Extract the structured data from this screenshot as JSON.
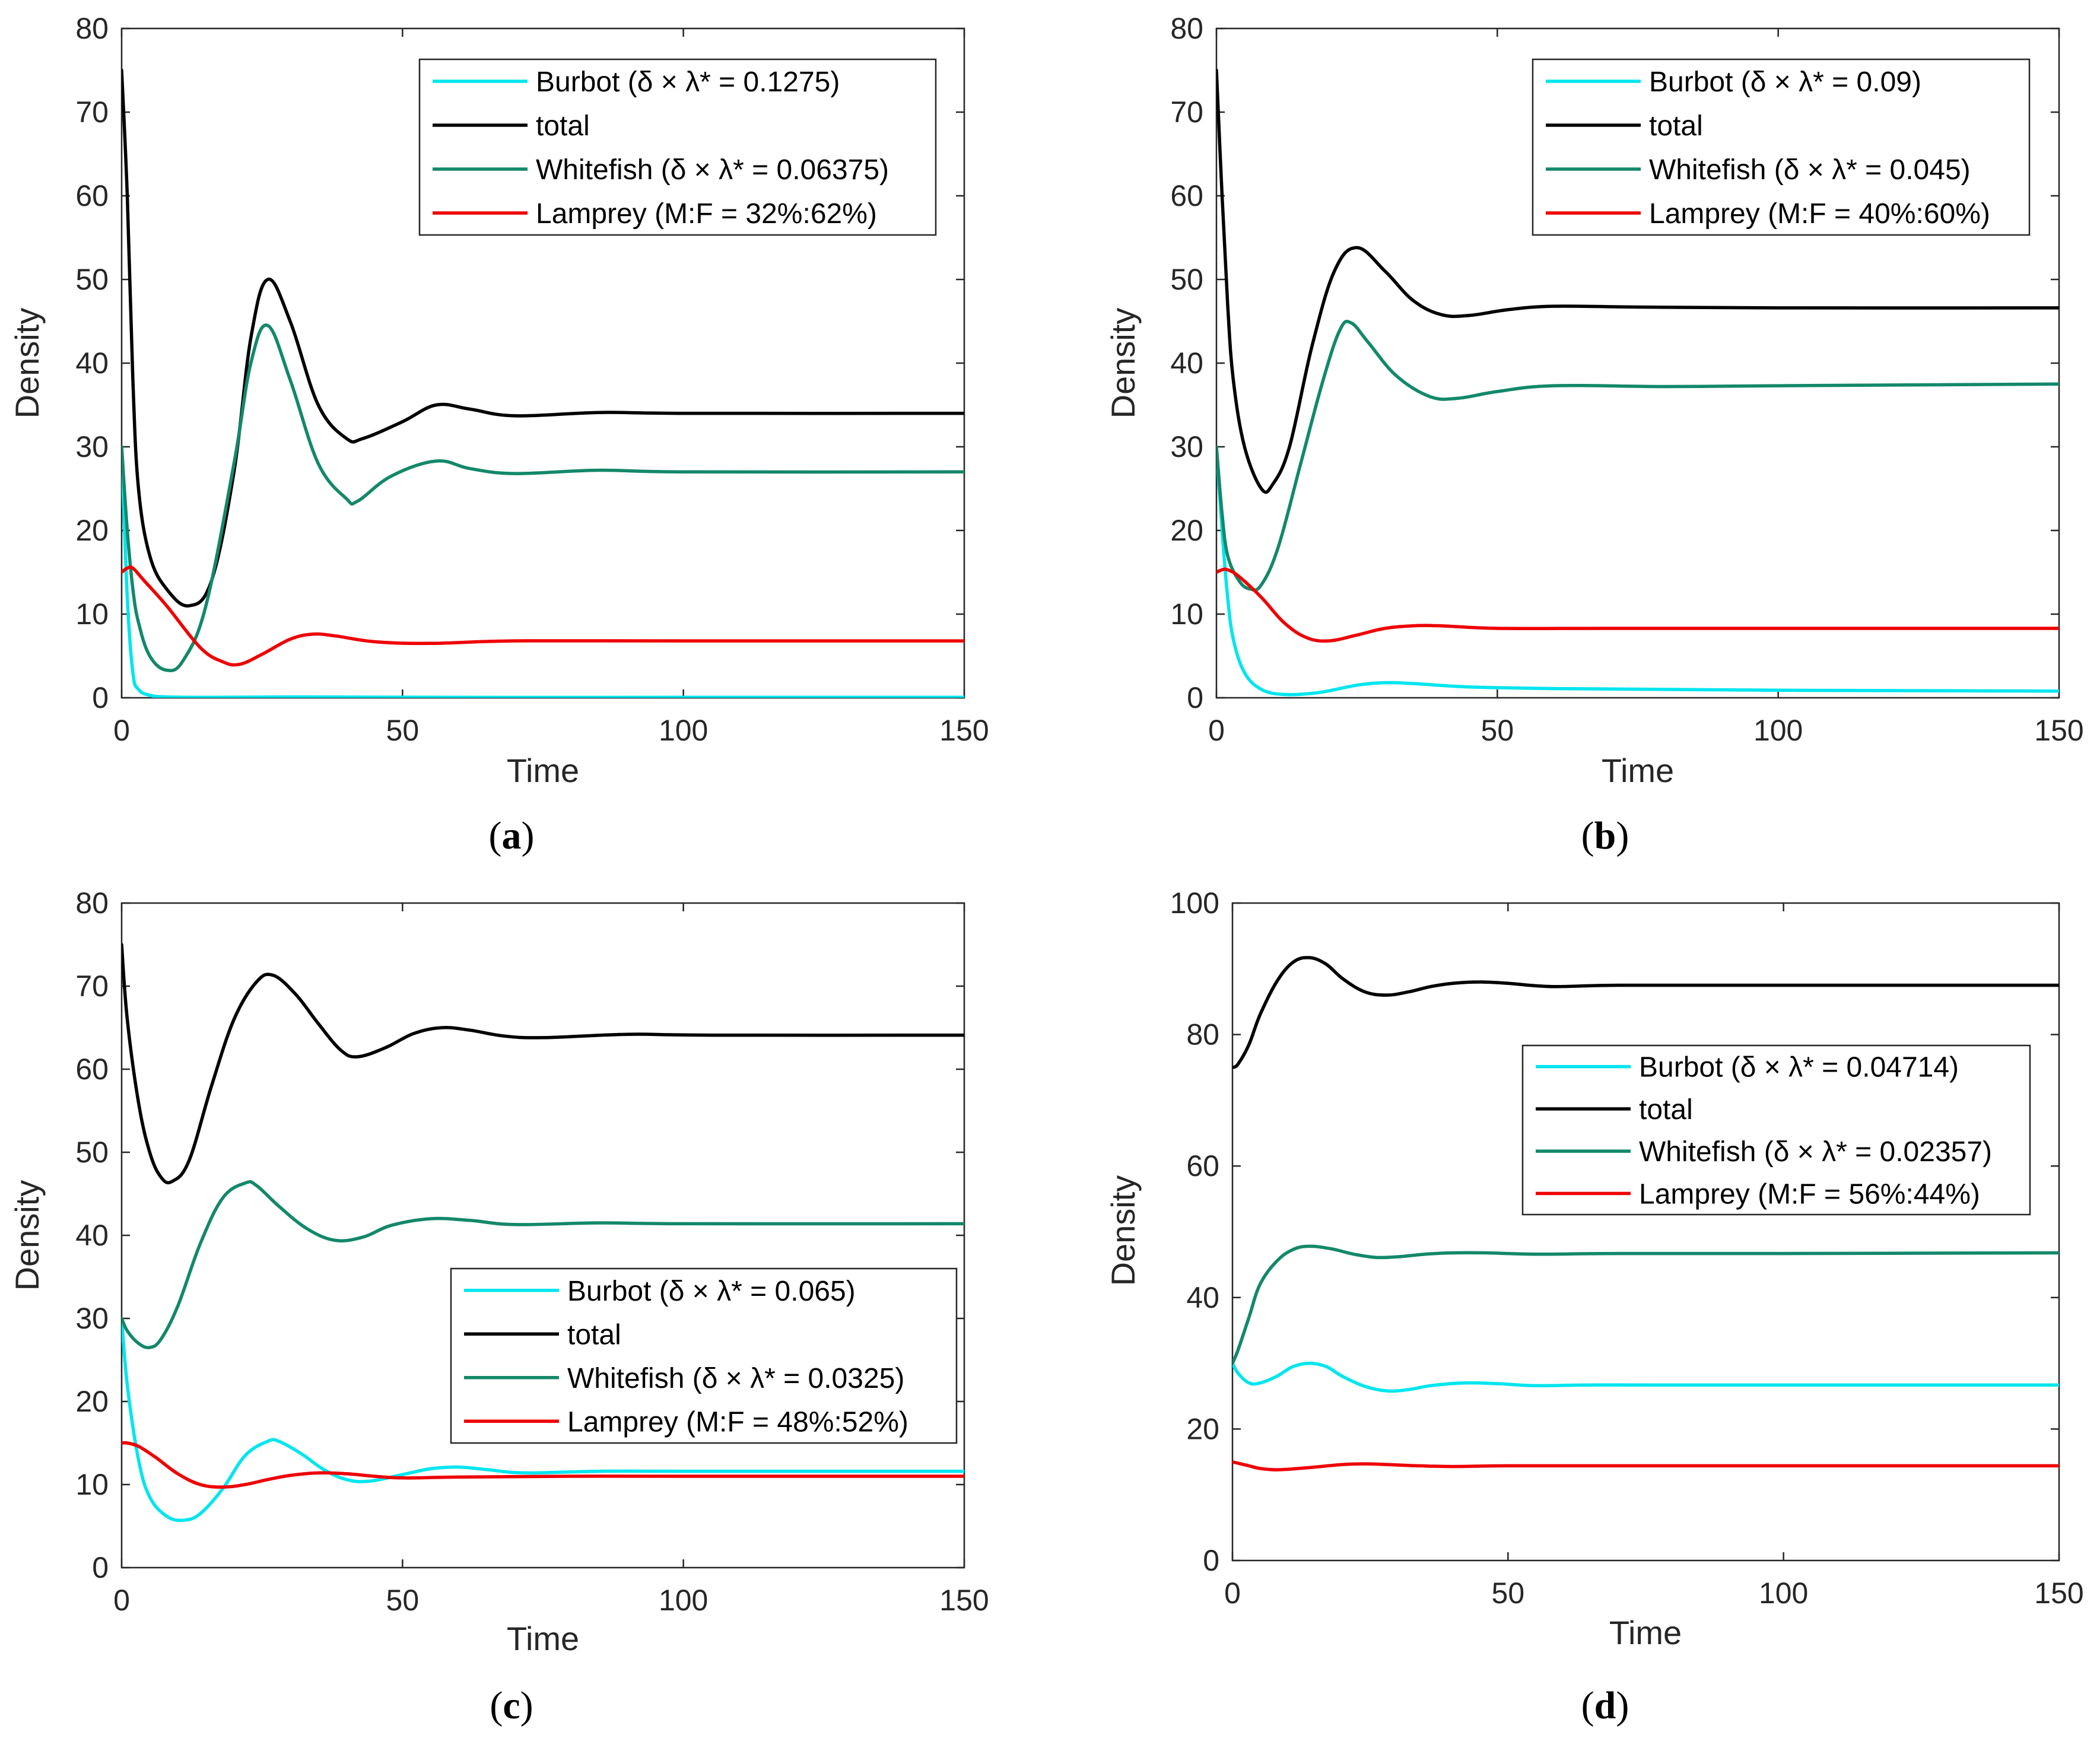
{
  "chart_data": [
    {
      "panel": "(a)",
      "panel_label": "a",
      "type": "line",
      "xlabel": "Time",
      "ylabel": "Density",
      "xlim": [
        0,
        150
      ],
      "ylim": [
        0,
        80
      ],
      "xticks": [
        0,
        50,
        100,
        150
      ],
      "yticks": [
        0,
        10,
        20,
        30,
        40,
        50,
        60,
        70,
        80
      ],
      "grid": false,
      "legend_position": "top-right",
      "series": [
        {
          "name": "Burbot (δ × λ* = 0.1275)",
          "color": "#00e5ee",
          "x": [
            0,
            1,
            2,
            3,
            5,
            8,
            15,
            30,
            60,
            100,
            150
          ],
          "y": [
            30,
            12,
            3,
            1,
            0.3,
            0.1,
            0.05,
            0.1,
            0.05,
            0.05,
            0.05
          ]
        },
        {
          "name": "total",
          "color": "#000000",
          "x": [
            0,
            1,
            2,
            3,
            5,
            8,
            12,
            16,
            20,
            23,
            26,
            30,
            35,
            40,
            43,
            50,
            56,
            62,
            70,
            85,
            100,
            150
          ],
          "y": [
            75,
            60,
            38,
            25,
            17,
            13,
            11,
            14,
            27,
            43,
            50,
            45,
            35,
            31,
            31,
            33,
            35,
            34.5,
            33.7,
            34.1,
            34,
            34
          ]
        },
        {
          "name": "Whitefish (δ × λ* = 0.06375)",
          "color": "#13886a",
          "x": [
            0,
            1,
            2,
            3,
            5,
            8,
            11,
            15,
            20,
            23,
            26,
            30,
            35,
            40,
            42,
            48,
            56,
            62,
            70,
            85,
            100,
            150
          ],
          "y": [
            30,
            20,
            13,
            9,
            5,
            3.3,
            4.5,
            11,
            28,
            40,
            44.5,
            38,
            28,
            23.8,
            23.5,
            26.5,
            28.3,
            27.4,
            26.8,
            27.2,
            27,
            27
          ]
        },
        {
          "name": "Lamprey (M:F = 32%:62%)",
          "color": "#ee0000",
          "x": [
            0,
            1,
            2,
            4,
            8,
            14,
            18,
            21,
            25,
            30,
            34,
            38,
            45,
            55,
            70,
            100,
            150
          ],
          "y": [
            15,
            15.5,
            15.5,
            14,
            11,
            6,
            4.3,
            4,
            5.2,
            7,
            7.6,
            7.4,
            6.7,
            6.5,
            6.8,
            6.8,
            6.8
          ]
        }
      ]
    },
    {
      "panel": "(b)",
      "panel_label": "b",
      "type": "line",
      "xlabel": "Time",
      "ylabel": "Density",
      "xlim": [
        0,
        150
      ],
      "ylim": [
        0,
        80
      ],
      "xticks": [
        0,
        50,
        100,
        150
      ],
      "yticks": [
        0,
        10,
        20,
        30,
        40,
        50,
        60,
        70,
        80
      ],
      "grid": false,
      "legend_position": "top-right",
      "series": [
        {
          "name": "Burbot (δ × λ* = 0.09)",
          "color": "#00e5ee",
          "x": [
            0,
            1,
            2,
            3,
            5,
            8,
            12,
            18,
            25,
            30,
            35,
            45,
            60,
            80,
            100,
            150
          ],
          "y": [
            30,
            20,
            12,
            7,
            3,
            1,
            0.4,
            0.6,
            1.5,
            1.8,
            1.7,
            1.3,
            1.1,
            1,
            0.9,
            0.8
          ]
        },
        {
          "name": "total",
          "color": "#000000",
          "x": [
            0,
            1,
            2,
            3,
            5,
            8,
            10,
            13,
            17,
            21,
            25,
            30,
            35,
            40,
            45,
            52,
            60,
            75,
            100,
            150
          ],
          "y": [
            75,
            60,
            47,
            38,
            30,
            25,
            25.5,
            30,
            42,
            51,
            53.8,
            51,
            47.5,
            45.8,
            45.7,
            46.4,
            46.8,
            46.7,
            46.6,
            46.6
          ]
        },
        {
          "name": "Whitefish (δ × λ* = 0.045)",
          "color": "#13886a",
          "x": [
            0,
            1,
            2,
            4,
            6,
            8,
            11,
            15,
            19,
            22,
            24,
            27,
            32,
            38,
            43,
            50,
            60,
            80,
            100,
            150
          ],
          "y": [
            30,
            22,
            17,
            14,
            13,
            13.5,
            18,
            28,
            38,
            44,
            44.8,
            42.5,
            38.5,
            36,
            35.8,
            36.6,
            37.3,
            37.2,
            37.3,
            37.5
          ]
        },
        {
          "name": "Lamprey (M:F = 40%:60%)",
          "color": "#ee0000",
          "x": [
            0,
            1,
            2,
            4,
            8,
            12,
            16,
            20,
            25,
            30,
            35,
            40,
            50,
            70,
            100,
            150
          ],
          "y": [
            15,
            15.3,
            15.3,
            14.5,
            12,
            9,
            7.2,
            6.8,
            7.5,
            8.3,
            8.6,
            8.6,
            8.3,
            8.3,
            8.3,
            8.3
          ]
        }
      ]
    },
    {
      "panel": "(c)",
      "panel_label": "c",
      "type": "line",
      "xlabel": "Time",
      "ylabel": "Density",
      "xlim": [
        0,
        150
      ],
      "ylim": [
        0,
        80
      ],
      "xticks": [
        0,
        50,
        100,
        150
      ],
      "yticks": [
        0,
        10,
        20,
        30,
        40,
        50,
        60,
        70,
        80
      ],
      "grid": false,
      "legend_position": "lower-right",
      "series": [
        {
          "name": "Burbot (δ × λ* = 0.065)",
          "color": "#00e5ee",
          "x": [
            0,
            1,
            3,
            5,
            8,
            11,
            14,
            18,
            22,
            26,
            28,
            32,
            36,
            40,
            44,
            50,
            55,
            60,
            65,
            72,
            85,
            100,
            150
          ],
          "y": [
            30,
            22,
            13,
            8.5,
            6.2,
            5.7,
            6.5,
            9.5,
            13.5,
            15.2,
            15.2,
            13.7,
            11.8,
            10.6,
            10.4,
            11.2,
            11.9,
            12.1,
            11.8,
            11.4,
            11.6,
            11.6,
            11.6
          ]
        },
        {
          "name": "total",
          "color": "#000000",
          "x": [
            0,
            1,
            3,
            5,
            7,
            9,
            12,
            16,
            20,
            24,
            27,
            31,
            35,
            39,
            42,
            47,
            52,
            57,
            62,
            68,
            75,
            90,
            105,
            150
          ],
          "y": [
            75,
            66,
            56,
            50,
            47,
            46.5,
            49,
            58,
            66,
            70.5,
            71.3,
            69,
            65.5,
            62.3,
            61.5,
            62.6,
            64.3,
            65,
            64.7,
            64,
            63.8,
            64.2,
            64.1,
            64.1
          ]
        },
        {
          "name": "Whitefish (δ × λ* = 0.0325)",
          "color": "#13886a",
          "x": [
            0,
            1,
            3,
            5,
            7,
            10,
            14,
            18,
            22,
            24,
            28,
            33,
            38,
            43,
            48,
            55,
            62,
            70,
            85,
            100,
            150
          ],
          "y": [
            30,
            28.5,
            27,
            26.5,
            27.5,
            31.5,
            39,
            44.5,
            46.3,
            46,
            43.5,
            40.8,
            39.4,
            39.8,
            41.2,
            42,
            41.8,
            41.3,
            41.5,
            41.4,
            41.4
          ]
        },
        {
          "name": "Lamprey (M:F = 48%:52%)",
          "color": "#ee0000",
          "x": [
            0,
            1,
            3,
            6,
            10,
            14,
            18,
            22,
            26,
            30,
            35,
            40,
            45,
            50,
            60,
            80,
            100,
            150
          ],
          "y": [
            15,
            15,
            14.6,
            13.3,
            11.3,
            10,
            9.7,
            10,
            10.6,
            11.1,
            11.4,
            11.3,
            11,
            10.8,
            10.9,
            11,
            11,
            11
          ]
        }
      ]
    },
    {
      "panel": "(d)",
      "panel_label": "d",
      "type": "line",
      "xlabel": "Time",
      "ylabel": "Density",
      "xlim": [
        0,
        150
      ],
      "ylim": [
        0,
        100
      ],
      "xticks": [
        0,
        50,
        100,
        150
      ],
      "yticks": [
        0,
        20,
        40,
        60,
        80,
        100
      ],
      "grid": false,
      "legend_position": "center-right",
      "series": [
        {
          "name": "Burbot (δ × λ* = 0.04714)",
          "color": "#00e5ee",
          "x": [
            0,
            1,
            3,
            5,
            8,
            11,
            14,
            17,
            20,
            24,
            28,
            32,
            36,
            42,
            48,
            55,
            65,
            80,
            100,
            150
          ],
          "y": [
            30,
            28.5,
            27,
            27,
            28,
            29.5,
            30,
            29.5,
            28,
            26.5,
            25.8,
            26,
            26.6,
            27,
            26.9,
            26.6,
            26.7,
            26.7,
            26.7,
            26.7
          ]
        },
        {
          "name": "total",
          "color": "#000000",
          "x": [
            0,
            1,
            3,
            5,
            8,
            11,
            14,
            17,
            20,
            24,
            28,
            32,
            36,
            40,
            45,
            50,
            58,
            70,
            100,
            150
          ],
          "y": [
            75,
            75.5,
            78.5,
            83,
            88,
            91,
            91.7,
            90.7,
            88.5,
            86.5,
            86,
            86.5,
            87.3,
            87.8,
            88,
            87.8,
            87.3,
            87.5,
            87.5,
            87.5
          ]
        },
        {
          "name": "Whitefish (δ × λ* = 0.02357)",
          "color": "#13886a",
          "x": [
            0,
            1,
            3,
            5,
            8,
            11,
            14,
            18,
            22,
            26,
            30,
            35,
            40,
            46,
            55,
            70,
            100,
            150
          ],
          "y": [
            30,
            32,
            37,
            42,
            45.5,
            47.3,
            47.8,
            47.4,
            46.6,
            46.1,
            46.2,
            46.6,
            46.8,
            46.8,
            46.6,
            46.7,
            46.7,
            46.8
          ]
        },
        {
          "name": "Lamprey (M:F = 56%:44%)",
          "color": "#ee0000",
          "x": [
            0,
            1,
            3,
            5,
            8,
            12,
            16,
            20,
            24,
            28,
            34,
            40,
            50,
            70,
            100,
            150
          ],
          "y": [
            15,
            14.8,
            14.4,
            14,
            13.8,
            14,
            14.3,
            14.6,
            14.7,
            14.6,
            14.4,
            14.3,
            14.4,
            14.4,
            14.4,
            14.4
          ]
        }
      ]
    }
  ]
}
